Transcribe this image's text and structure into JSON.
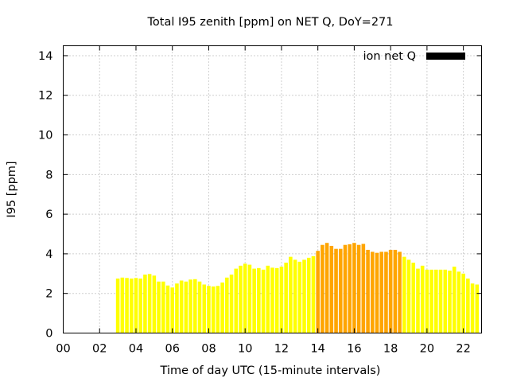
{
  "chart_data": {
    "type": "bar",
    "title": "Total I95 zenith [ppm] on NET Q, DoY=271",
    "xlabel": "Time of day UTC (15-minute intervals)",
    "ylabel": "I95 [ppm]",
    "xlim": [
      0,
      23
    ],
    "ylim": [
      0,
      14.5
    ],
    "xticks": [
      "00",
      "02",
      "04",
      "06",
      "08",
      "10",
      "12",
      "14",
      "16",
      "18",
      "20",
      "22"
    ],
    "yticks": [
      "0",
      "2",
      "4",
      "6",
      "8",
      "10",
      "12",
      "14"
    ],
    "grid": true,
    "legend": {
      "position": "top-right",
      "label": "ion net Q",
      "color": "#000000"
    },
    "colors": {
      "low": "#ffff00",
      "high": "#ffa500"
    },
    "series": [
      {
        "x": [
          3.0,
          3.25,
          3.5,
          3.75,
          4.0,
          4.25,
          4.5,
          4.75,
          5.0,
          5.25,
          5.5,
          5.75,
          6.0,
          6.25,
          6.5,
          6.75,
          7.0,
          7.25,
          7.5,
          7.75,
          8.0,
          8.25,
          8.5,
          8.75,
          9.0,
          9.25,
          9.5,
          9.75,
          10.0,
          10.25,
          10.5,
          10.75,
          11.0,
          11.25,
          11.5,
          11.75,
          12.0,
          12.25,
          12.5,
          12.75,
          13.0,
          13.25,
          13.5,
          13.75,
          14.0,
          14.25,
          14.5,
          14.75,
          15.0,
          15.25,
          15.5,
          15.75,
          16.0,
          16.25,
          16.5,
          16.75,
          17.0,
          17.25,
          17.5,
          17.75,
          18.0,
          18.25,
          18.5,
          18.75,
          19.0,
          19.25,
          19.5,
          19.75,
          20.0,
          20.25,
          20.5,
          20.75,
          21.0,
          21.25,
          21.5,
          21.75,
          22.0,
          22.25,
          22.5,
          22.75
        ],
        "values": [
          2.75,
          2.8,
          2.78,
          2.75,
          2.78,
          2.75,
          2.95,
          2.98,
          2.9,
          2.6,
          2.6,
          2.4,
          2.3,
          2.5,
          2.65,
          2.6,
          2.7,
          2.72,
          2.6,
          2.45,
          2.38,
          2.35,
          2.38,
          2.55,
          2.8,
          2.95,
          3.25,
          3.4,
          3.5,
          3.45,
          3.25,
          3.28,
          3.2,
          3.4,
          3.3,
          3.28,
          3.35,
          3.55,
          3.85,
          3.7,
          3.6,
          3.7,
          3.8,
          3.88,
          4.15,
          4.45,
          4.55,
          4.4,
          4.25,
          4.25,
          4.45,
          4.48,
          4.55,
          4.45,
          4.5,
          4.2,
          4.1,
          4.05,
          4.1,
          4.1,
          4.2,
          4.2,
          4.1,
          3.85,
          3.7,
          3.55,
          3.25,
          3.4,
          3.2,
          3.2,
          3.2,
          3.2,
          3.2,
          3.15,
          3.35,
          3.1,
          3.0,
          2.75,
          2.5,
          2.45
        ],
        "categories_color": [
          "low",
          "low",
          "low",
          "low",
          "low",
          "low",
          "low",
          "low",
          "low",
          "low",
          "low",
          "low",
          "low",
          "low",
          "low",
          "low",
          "low",
          "low",
          "low",
          "low",
          "low",
          "low",
          "low",
          "low",
          "low",
          "low",
          "low",
          "low",
          "low",
          "low",
          "low",
          "low",
          "low",
          "low",
          "low",
          "low",
          "low",
          "low",
          "low",
          "low",
          "low",
          "low",
          "low",
          "low",
          "high",
          "high",
          "high",
          "high",
          "high",
          "high",
          "high",
          "high",
          "high",
          "high",
          "high",
          "high",
          "high",
          "high",
          "high",
          "high",
          "high",
          "high",
          "high",
          "low",
          "low",
          "low",
          "low",
          "low",
          "low",
          "low",
          "low",
          "low",
          "low",
          "low",
          "low",
          "low",
          "low",
          "low",
          "low",
          "low"
        ]
      }
    ]
  }
}
